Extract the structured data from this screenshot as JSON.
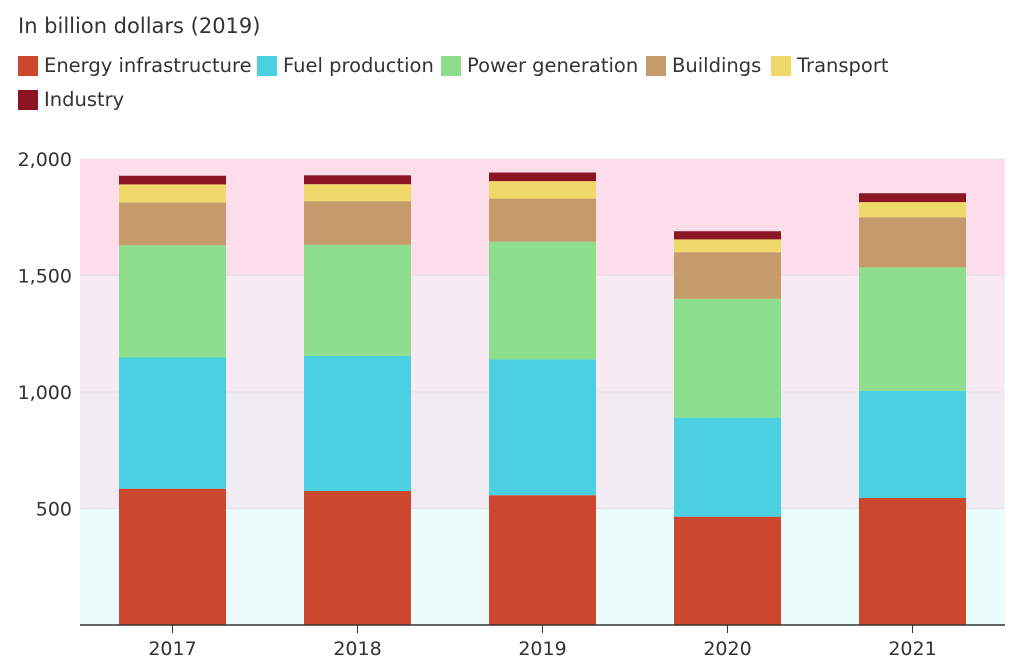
{
  "chart_data": {
    "type": "bar",
    "stacked": true,
    "title": "",
    "subtitle": "In billion dollars (2019)",
    "xlabel": "",
    "ylabel": "",
    "categories": [
      "2017",
      "2018",
      "2019",
      "2020",
      "2021"
    ],
    "ylim": [
      0,
      2000
    ],
    "yticks": [
      500,
      1000,
      1500,
      2000
    ],
    "ytick_labels": [
      "500",
      "1,000",
      "1,500",
      "2,000"
    ],
    "grid": true,
    "legend_position": "top-left",
    "background_bands": [
      {
        "from": 0,
        "to": 500,
        "color": "#eafcfc"
      },
      {
        "from": 500,
        "to": 1000,
        "color": "#f1ecf3"
      },
      {
        "from": 1000,
        "to": 1500,
        "color": "#f7eaf2"
      },
      {
        "from": 1500,
        "to": 2000,
        "color": "#fcdde9"
      }
    ],
    "series": [
      {
        "name": "Energy infrastructure",
        "color": "#cd472e",
        "values": [
          585,
          575,
          557,
          465,
          545
        ]
      },
      {
        "name": "Fuel production",
        "color": "#4bd0e2",
        "values": [
          563,
          580,
          583,
          425,
          460
        ]
      },
      {
        "name": "Power generation",
        "color": "#8dde8d",
        "values": [
          482,
          477,
          505,
          510,
          530
        ]
      },
      {
        "name": "Buildings",
        "color": "#c59b6c",
        "values": [
          183,
          187,
          185,
          200,
          215
        ]
      },
      {
        "name": "Transport",
        "color": "#eed96a",
        "values": [
          78,
          73,
          75,
          55,
          65
        ]
      },
      {
        "name": "Industry",
        "color": "#8b1525",
        "values": [
          37,
          38,
          37,
          35,
          38
        ]
      }
    ]
  }
}
